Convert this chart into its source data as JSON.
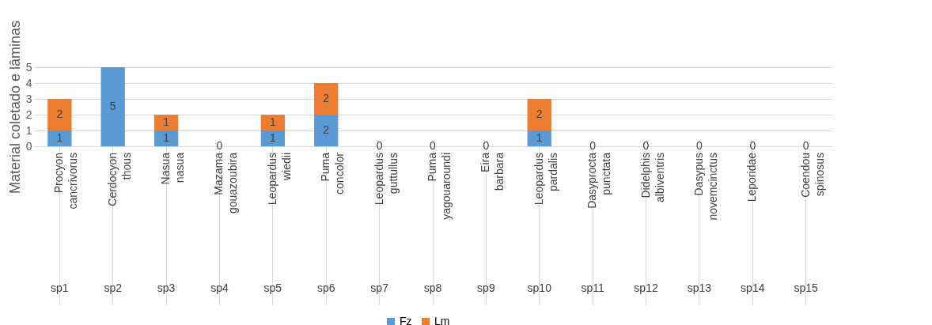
{
  "chart_data": {
    "type": "bar",
    "stacked": true,
    "ylabel": "Material coletado e lâminas",
    "categories": [
      "Procyon cancrivorus",
      "Cerdocyon thous",
      "Nasua nasua",
      "Mazama gouazoubira",
      "Leopardus wiedii",
      "Puma concolor",
      "Leopardus guttullus",
      "Puma yagouaroundi",
      "Eira barbara",
      "Leopardus pardalis",
      "Dasyprocta punctata",
      "Didelphis albiventris",
      "Dasypus novemcinctus",
      "Leporidae",
      "Coendou spinosus"
    ],
    "annotations": [
      "sp1",
      "sp2",
      "sp3",
      "sp4",
      "sp5",
      "sp6",
      "sp7",
      "sp8",
      "sp9",
      "sp10",
      "sp11",
      "sp12",
      "sp13",
      "sp14",
      "sp15"
    ],
    "series": [
      {
        "name": "Fz",
        "color": "#5b9bd5",
        "values": [
          1,
          5,
          1,
          0,
          1,
          2,
          0,
          0,
          0,
          1,
          0,
          0,
          0,
          0,
          0
        ],
        "value_labels": [
          "1",
          "5",
          "1",
          "0",
          "1",
          "2",
          "0",
          "0",
          "0",
          "1",
          "0",
          "0",
          "0",
          "0",
          "0"
        ]
      },
      {
        "name": "Lm",
        "color": "#ed7d31",
        "values": [
          2,
          0,
          1,
          0,
          1,
          2,
          0,
          0,
          0,
          2,
          0,
          0,
          0,
          0,
          0
        ],
        "value_labels": [
          "2",
          null,
          "1",
          null,
          "1",
          "2",
          null,
          null,
          null,
          "2",
          null,
          null,
          null,
          null,
          null
        ]
      }
    ],
    "ylim": [
      0,
      5
    ],
    "yticks": [
      0,
      1,
      2,
      3,
      4,
      5
    ],
    "grid": "y",
    "legend": "bottom"
  }
}
